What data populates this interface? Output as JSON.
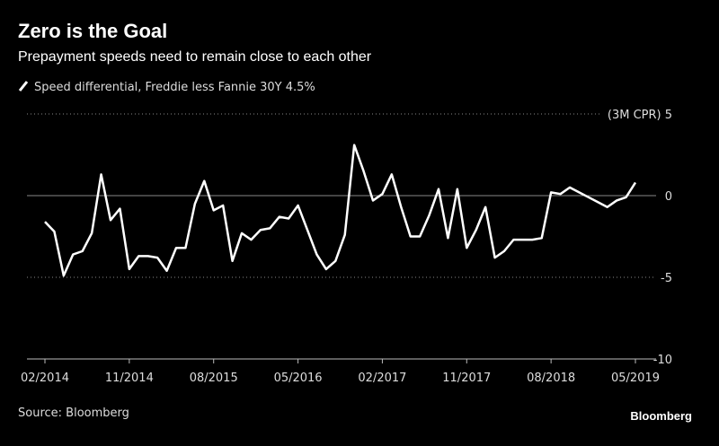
{
  "chart_data": {
    "type": "line",
    "title": "Zero is the Goal",
    "subtitle": "Prepayment speeds need to remain close to each other",
    "source": "Source: Bloomberg",
    "brand": "Bloomberg",
    "categories": [
      "02/2014",
      null,
      null,
      null,
      null,
      null,
      null,
      null,
      null,
      "11/2014",
      null,
      null,
      null,
      null,
      null,
      null,
      null,
      null,
      "08/2015",
      null,
      null,
      null,
      null,
      null,
      null,
      null,
      null,
      "05/2016",
      null,
      null,
      null,
      null,
      null,
      null,
      null,
      null,
      "02/2017",
      null,
      null,
      null,
      null,
      null,
      null,
      null,
      null,
      "11/2017",
      null,
      null,
      null,
      null,
      null,
      null,
      null,
      null,
      "08/2018",
      null,
      null,
      null,
      null,
      null,
      null,
      null,
      null,
      "05/2019"
    ],
    "series": [
      {
        "name": "Speed differential, Freddie less Fannie 30Y 4.5%",
        "color": "#ffffff",
        "values": [
          -1.6,
          -2.2,
          -4.9,
          -3.6,
          -3.4,
          -2.3,
          1.3,
          -1.5,
          -0.8,
          -4.5,
          -3.7,
          -3.7,
          -3.8,
          -4.6,
          -3.2,
          -3.2,
          -0.5,
          0.9,
          -0.9,
          -0.6,
          -4.0,
          -2.3,
          -2.7,
          -2.1,
          -2.0,
          -1.3,
          -1.4,
          -0.6,
          -2.1,
          -3.6,
          -4.5,
          -4.0,
          -2.4,
          3.1,
          1.5,
          -0.3,
          0.1,
          1.3,
          -0.7,
          -2.5,
          -2.5,
          -1.2,
          0.4,
          -2.6,
          0.4,
          -3.2,
          -2.1,
          -0.7,
          -3.8,
          -3.4,
          -2.7,
          -2.7,
          -2.7,
          -2.6,
          0.2,
          0.1,
          0.5,
          0.2,
          -0.1,
          -0.4,
          -0.7,
          -0.3,
          -0.1,
          0.8
        ]
      }
    ],
    "ylim": [
      -10,
      5
    ],
    "yticks": [
      {
        "value": 5,
        "label": "(3M CPR) 5"
      },
      0,
      -5,
      -10
    ],
    "grid": true
  }
}
